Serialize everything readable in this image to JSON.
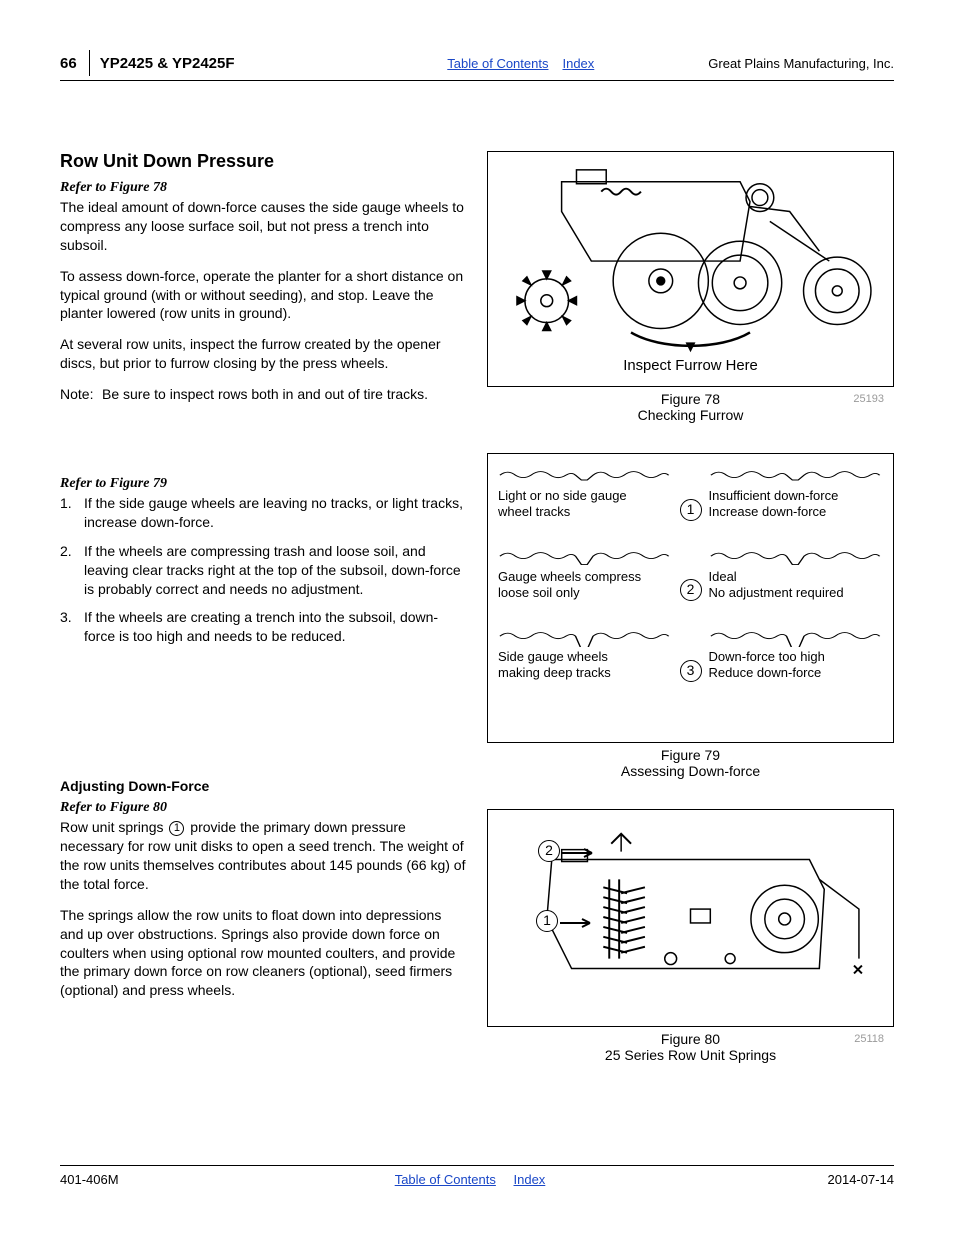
{
  "header": {
    "page_number": "66",
    "model": "YP2425 & YP2425F",
    "toc_link": "Table of Contents",
    "index_link": "Index",
    "company": "Great Plains Manufacturing, Inc."
  },
  "footer": {
    "doc_number": "401-406M",
    "toc_link": "Table of Contents",
    "index_link": "Index",
    "date": "2014-07-14"
  },
  "section": {
    "title": "Row Unit Down Pressure",
    "refer78": "Refer to Figure 78",
    "p1": "The ideal amount of down-force causes the side gauge wheels to compress any loose surface soil, but not press a trench into subsoil.",
    "p2": "To assess down-force, operate the planter for a short distance on typical ground (with or without seeding), and stop. Leave the planter lowered (row units in ground).",
    "p3": "At several row units, inspect the furrow created by the opener discs, but prior to furrow closing by the press wheels.",
    "note_label": "Note:",
    "note_text": "Be sure to inspect rows both in and out of tire tracks.",
    "refer79": "Refer to Figure 79",
    "list": [
      "If the side gauge wheels are leaving no tracks, or light tracks, increase down-force.",
      "If the wheels are compressing trash and loose soil, and leaving clear tracks right at the top of the subsoil, down-force is probably correct and needs no adjustment.",
      "If the wheels are creating a trench into the subsoil, down-force is too high and needs to be reduced."
    ],
    "adjust_title": "Adjusting Down-Force",
    "refer80": "Refer to Figure 80",
    "p4a": "Row unit springs ",
    "p4b": " provide the primary down pressure necessary for row unit disks to open a seed trench. The weight of the row units themselves contributes about 145 pounds (66 kg) of the total force.",
    "p5": "The springs allow the row units to float down into depressions and up over obstructions. Springs also provide down force on coulters when using optional row mounted coulters, and provide the primary down force on row cleaners (optional), seed firmers (optional) and press wheels."
  },
  "figures": {
    "fig78": {
      "label_inside": "Inspect Furrow Here",
      "caption_line1": "Figure 78",
      "caption_line2": "Checking Furrow",
      "code": "25193",
      "colors": {
        "stroke": "#000000",
        "fill": "#ffffff"
      }
    },
    "fig79": {
      "caption_line1": "Figure 79",
      "caption_line2": "Assessing Down-force",
      "rows": [
        {
          "num": "1",
          "left_l1": "Light or no side gauge",
          "left_l2": "wheel tracks",
          "right_l1": "Insufficient down-force",
          "right_l2": "Increase down-force",
          "depth": 8
        },
        {
          "num": "2",
          "left_l1": "Gauge wheels compress",
          "left_l2": "loose soil only",
          "right_l1": "Ideal",
          "right_l2": "No adjustment required",
          "depth": 14
        },
        {
          "num": "3",
          "left_l1": "Side gauge wheels",
          "left_l2": "making deep tracks",
          "right_l1": "Down-force too high",
          "right_l2": "Reduce down-force",
          "depth": 22
        }
      ],
      "wavy_color": "#000000"
    },
    "fig80": {
      "caption_line1": "Figure 80",
      "caption_line2": "25 Series Row Unit Springs",
      "code": "25118",
      "callouts": [
        "1",
        "2"
      ],
      "colors": {
        "stroke": "#000000"
      }
    }
  }
}
